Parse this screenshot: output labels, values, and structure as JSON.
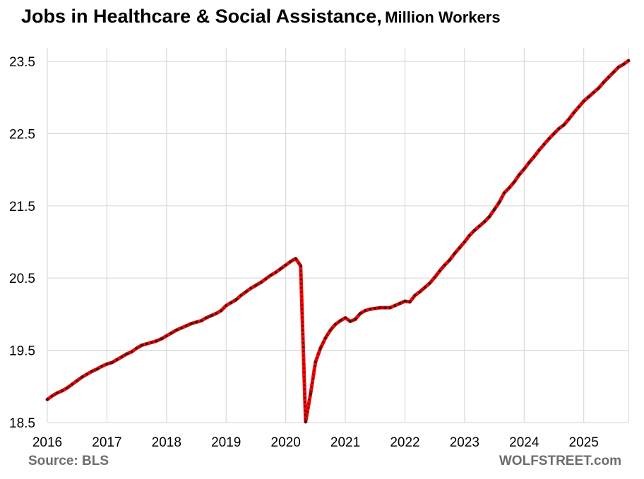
{
  "chart_data": {
    "type": "line",
    "title": "Jobs in Healthcare & Social Assistance,",
    "subtitle": "Million Workers",
    "xlabel": "",
    "ylabel": "",
    "x_range": [
      2016.0,
      2025.75
    ],
    "ylim": [
      18.5,
      24.0
    ],
    "y_ticks": [
      18.5,
      19.5,
      20.5,
      21.5,
      22.5,
      23.5
    ],
    "y_tick_labels": [
      "18.5",
      "19.5",
      "20.5",
      "21.5",
      "22.5",
      "23.5"
    ],
    "x_ticks": [
      2016,
      2017,
      2018,
      2019,
      2020,
      2021,
      2022,
      2023,
      2024,
      2025
    ],
    "x_tick_labels": [
      "2016",
      "2017",
      "2018",
      "2019",
      "2020",
      "2021",
      "2022",
      "2023",
      "2024",
      "2025"
    ],
    "grid": "vertical and horizontal",
    "legend": "none",
    "line_color": "#ff0000",
    "marker_color": "#222222",
    "series": [
      {
        "start": "2016-01",
        "frequency": "monthly",
        "values": [
          18.82,
          18.87,
          18.91,
          18.94,
          18.98,
          19.03,
          19.08,
          19.13,
          19.17,
          19.21,
          19.24,
          19.28,
          19.31,
          19.33,
          19.37,
          19.41,
          19.45,
          19.48,
          19.53,
          19.57,
          19.59,
          19.61,
          19.63,
          19.66,
          19.7,
          19.74,
          19.78,
          19.81,
          19.84,
          19.87,
          19.89,
          19.91,
          19.95,
          19.98,
          20.01,
          20.05,
          20.12,
          20.16,
          20.2,
          20.26,
          20.31,
          20.36,
          20.4,
          20.44,
          20.49,
          20.54,
          20.58,
          20.63,
          20.68,
          20.73,
          20.77,
          20.67,
          18.51,
          18.9,
          19.34,
          19.53,
          19.67,
          19.78,
          19.86,
          19.91,
          19.95,
          19.9,
          19.93,
          20.01,
          20.05,
          20.07,
          20.08,
          20.09,
          20.09,
          20.09,
          20.12,
          20.15,
          20.18,
          20.17,
          20.26,
          20.31,
          20.37,
          20.43,
          20.51,
          20.6,
          20.68,
          20.75,
          20.84,
          20.92,
          21.0,
          21.09,
          21.16,
          21.22,
          21.28,
          21.35,
          21.45,
          21.55,
          21.68,
          21.75,
          21.83,
          21.93,
          22.01,
          22.1,
          22.18,
          22.27,
          22.35,
          22.43,
          22.5,
          22.57,
          22.62,
          22.7,
          22.79,
          22.87,
          22.95,
          23.01,
          23.07,
          23.13,
          23.21,
          23.28,
          23.35,
          23.42,
          23.46,
          23.51
        ]
      }
    ],
    "source": "Source: BLS",
    "watermark": "WOLFSTREET.com"
  }
}
